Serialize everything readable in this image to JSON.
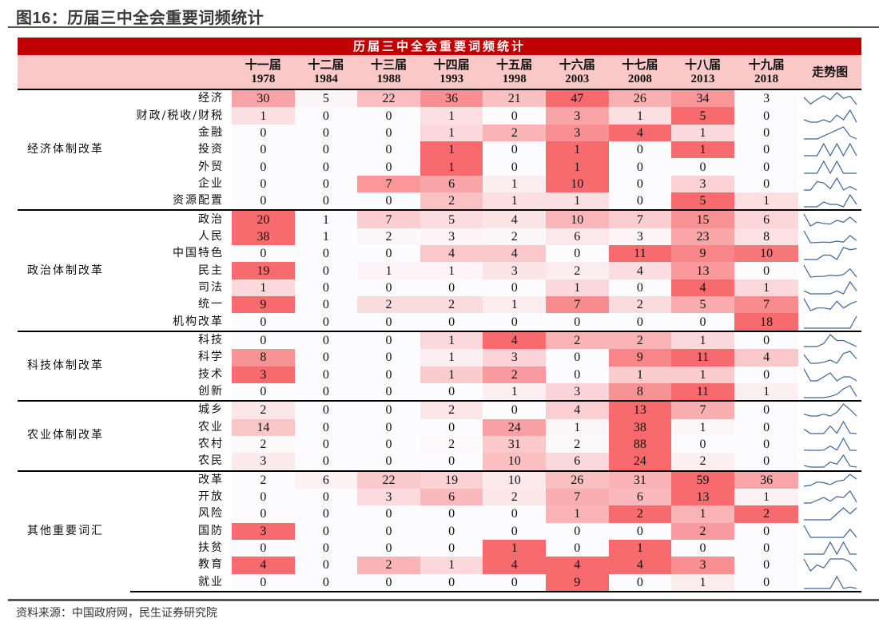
{
  "figure": {
    "title": "图16：历届三中全会重要词频统计",
    "source": "资料来源：中国政府网，民生证券研究院"
  },
  "table": {
    "banner": "历届三中全会重要词频统计",
    "trend_header": "走势图",
    "sessions": [
      {
        "name": "十一届",
        "year": "1978"
      },
      {
        "name": "十二届",
        "year": "1984"
      },
      {
        "name": "十三届",
        "year": "1988"
      },
      {
        "name": "十四届",
        "year": "1993"
      },
      {
        "name": "十五届",
        "year": "1998"
      },
      {
        "name": "十六届",
        "year": "2003"
      },
      {
        "name": "十七届",
        "year": "2008"
      },
      {
        "name": "十八届",
        "year": "2013"
      },
      {
        "name": "十九届",
        "year": "2018"
      }
    ],
    "colors": {
      "heat_max": "#f76b6e",
      "heat_min": "#fcfcfe",
      "sparkline": "#3d6594",
      "banner": "#c00000",
      "header_bg": "#fbc8c8"
    }
  },
  "chart_data": {
    "type": "heatmap",
    "title": "历届三中全会重要词频统计",
    "xlabel": "",
    "ylabel": "",
    "x": [
      "1978",
      "1984",
      "1988",
      "1993",
      "1998",
      "2003",
      "2008",
      "2013",
      "2018"
    ],
    "x_sessions": [
      "十一届",
      "十二届",
      "十三届",
      "十四届",
      "十五届",
      "十六届",
      "十七届",
      "十八届",
      "十九届"
    ],
    "color_scale": "row-normalized (white = row min, red = row max)",
    "groups": [
      {
        "category": "经济体制改革",
        "rows": [
          {
            "term": "经济",
            "values": [
              30,
              5,
              22,
              36,
              21,
              47,
              26,
              34,
              3
            ]
          },
          {
            "term": "财政/税收/财税",
            "values": [
              1,
              0,
              0,
              1,
              0,
              3,
              1,
              5,
              0
            ]
          },
          {
            "term": "金融",
            "values": [
              0,
              0,
              0,
              1,
              2,
              3,
              4,
              1,
              0
            ]
          },
          {
            "term": "投资",
            "values": [
              0,
              0,
              0,
              1,
              0,
              1,
              0,
              1,
              0
            ]
          },
          {
            "term": "外贸",
            "values": [
              0,
              0,
              0,
              1,
              0,
              1,
              0,
              0,
              0
            ]
          },
          {
            "term": "企业",
            "values": [
              0,
              0,
              7,
              6,
              1,
              10,
              0,
              3,
              0
            ]
          },
          {
            "term": "资源配置",
            "values": [
              0,
              0,
              0,
              2,
              1,
              1,
              0,
              5,
              1
            ]
          }
        ]
      },
      {
        "category": "政治体制改革",
        "rows": [
          {
            "term": "政治",
            "values": [
              20,
              1,
              7,
              5,
              4,
              10,
              7,
              15,
              6
            ]
          },
          {
            "term": "人民",
            "values": [
              38,
              1,
              2,
              3,
              2,
              6,
              3,
              23,
              8
            ]
          },
          {
            "term": "中国特色",
            "values": [
              0,
              0,
              0,
              4,
              4,
              0,
              11,
              9,
              10
            ]
          },
          {
            "term": "民主",
            "values": [
              19,
              0,
              1,
              1,
              3,
              2,
              4,
              13,
              0
            ]
          },
          {
            "term": "司法",
            "values": [
              1,
              0,
              0,
              0,
              0,
              1,
              0,
              4,
              1
            ]
          },
          {
            "term": "统一",
            "values": [
              9,
              0,
              2,
              2,
              1,
              7,
              2,
              5,
              7
            ]
          },
          {
            "term": "机构改革",
            "values": [
              0,
              0,
              0,
              0,
              0,
              0,
              0,
              0,
              18
            ]
          }
        ]
      },
      {
        "category": "科技体制改革",
        "rows": [
          {
            "term": "科技",
            "values": [
              0,
              0,
              0,
              1,
              4,
              2,
              2,
              1,
              0
            ]
          },
          {
            "term": "科学",
            "values": [
              8,
              0,
              0,
              1,
              3,
              0,
              9,
              11,
              4
            ]
          },
          {
            "term": "技术",
            "values": [
              3,
              0,
              0,
              1,
              2,
              0,
              1,
              1,
              0
            ]
          },
          {
            "term": "创新",
            "values": [
              0,
              0,
              0,
              0,
              1,
              3,
              8,
              11,
              1
            ]
          }
        ]
      },
      {
        "category": "农业体制改革",
        "rows": [
          {
            "term": "城乡",
            "values": [
              2,
              0,
              0,
              2,
              0,
              4,
              13,
              7,
              0
            ]
          },
          {
            "term": "农业",
            "values": [
              14,
              0,
              0,
              0,
              24,
              1,
              38,
              1,
              0
            ]
          },
          {
            "term": "农村",
            "values": [
              2,
              0,
              0,
              2,
              31,
              2,
              88,
              0,
              0
            ]
          },
          {
            "term": "农民",
            "values": [
              3,
              0,
              0,
              0,
              10,
              6,
              24,
              2,
              0
            ]
          }
        ]
      },
      {
        "category": "其他重要词汇",
        "rows": [
          {
            "term": "改革",
            "values": [
              2,
              6,
              22,
              19,
              10,
              26,
              31,
              59,
              36
            ]
          },
          {
            "term": "开放",
            "values": [
              0,
              0,
              3,
              6,
              2,
              7,
              6,
              13,
              1
            ]
          },
          {
            "term": "风险",
            "values": [
              0,
              0,
              0,
              0,
              0,
              1,
              2,
              1,
              2
            ]
          },
          {
            "term": "国防",
            "values": [
              3,
              0,
              0,
              0,
              0,
              0,
              0,
              2,
              0
            ]
          },
          {
            "term": "扶贫",
            "values": [
              0,
              0,
              0,
              0,
              1,
              0,
              1,
              0,
              0
            ]
          },
          {
            "term": "教育",
            "values": [
              4,
              0,
              2,
              1,
              4,
              4,
              4,
              3,
              0
            ]
          },
          {
            "term": "就业",
            "values": [
              0,
              0,
              0,
              0,
              0,
              9,
              0,
              1,
              0
            ]
          }
        ]
      }
    ]
  }
}
